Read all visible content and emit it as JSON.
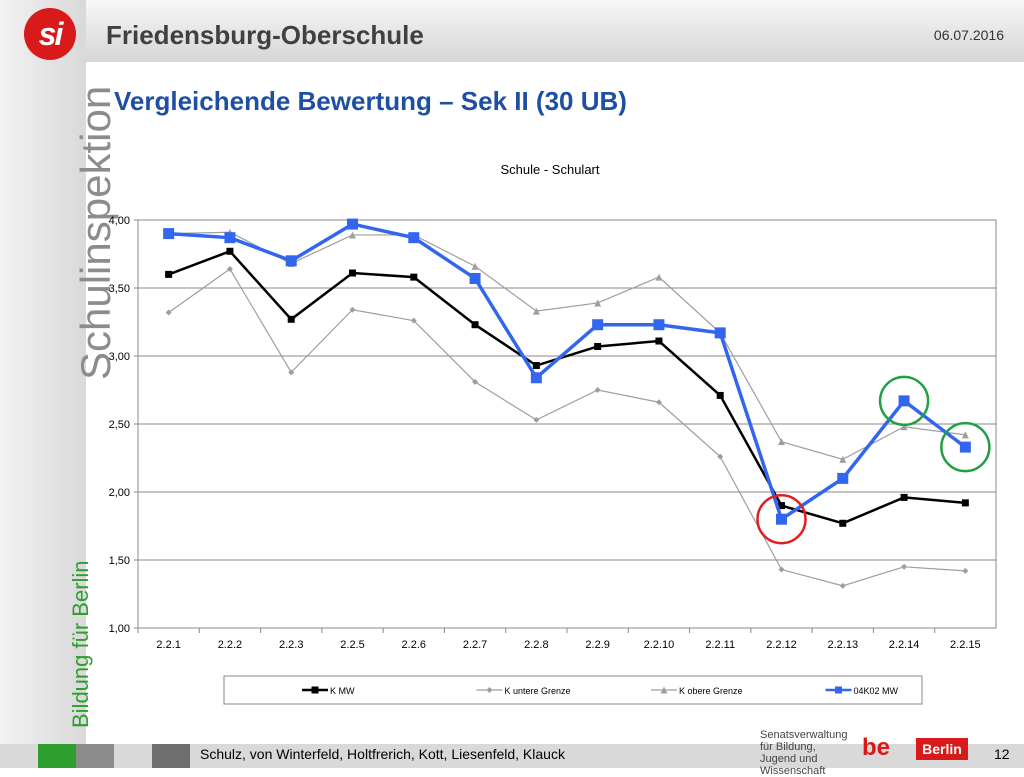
{
  "header": {
    "logo_text": "si",
    "school_title": "Friedensburg-Oberschule",
    "date": "06.07.2016"
  },
  "sidebar": {
    "brand": "Schulinspektion",
    "slogan": "Bildung für Berlin"
  },
  "page_title": "Vergleichende Bewertung – Sek II (30 UB)",
  "footer": {
    "authors": "Schulz, von Winterfeld, Holtfrerich, Kott, Liesenfeld, Klauck",
    "page_number": "12",
    "senat_text": "Senatsverwaltung für Bildung, Jugend und Wissenschaft",
    "berlin_be": "be",
    "berlin_label": "Berlin"
  },
  "colors": {
    "k_mw": "#000000",
    "k_untere": "#9e9e9e",
    "k_obere": "#9e9e9e",
    "mw_04k02": "#3366ee",
    "circle_red": "#e02020",
    "circle_green": "#20a040"
  },
  "chart_data": {
    "type": "line",
    "title": "Schule - Schulart",
    "categories": [
      "2.2.1",
      "2.2.2",
      "2.2.3",
      "2.2.5",
      "2.2.6",
      "2.2.7",
      "2.2.8",
      "2.2.9",
      "2.2.10",
      "2.2.11",
      "2.2.12",
      "2.2.13",
      "2.2.14",
      "2.2.15"
    ],
    "ylim": [
      1.0,
      4.0
    ],
    "yticks": [
      "1,00",
      "1,50",
      "2,00",
      "2,50",
      "3,00",
      "3,50",
      "4,00"
    ],
    "grid": true,
    "legend_position": "bottom",
    "series": [
      {
        "name": "K MW",
        "marker": "square",
        "values": [
          3.6,
          3.77,
          3.27,
          3.61,
          3.58,
          3.23,
          2.93,
          3.07,
          3.11,
          2.71,
          1.9,
          1.77,
          1.96,
          1.92
        ]
      },
      {
        "name": "K untere Grenze",
        "marker": "diamond",
        "values": [
          3.32,
          3.64,
          2.88,
          3.34,
          3.26,
          2.81,
          2.53,
          2.75,
          2.66,
          2.26,
          1.43,
          1.31,
          1.45,
          1.42
        ]
      },
      {
        "name": "K obere Grenze",
        "marker": "triangle",
        "values": [
          3.9,
          3.91,
          3.68,
          3.89,
          3.89,
          3.66,
          3.33,
          3.39,
          3.58,
          3.17,
          2.37,
          2.24,
          2.48,
          2.42
        ]
      },
      {
        "name": "04K02 MW",
        "marker": "square",
        "values": [
          3.9,
          3.87,
          3.7,
          3.97,
          3.87,
          3.57,
          2.84,
          3.23,
          3.23,
          3.17,
          1.8,
          2.1,
          2.67,
          2.33
        ]
      }
    ],
    "highlights": [
      {
        "category": "2.2.12",
        "value": 1.8,
        "color": "red"
      },
      {
        "category": "2.2.14",
        "value": 2.67,
        "color": "green"
      },
      {
        "category": "2.2.15",
        "value": 2.33,
        "color": "green"
      }
    ]
  }
}
